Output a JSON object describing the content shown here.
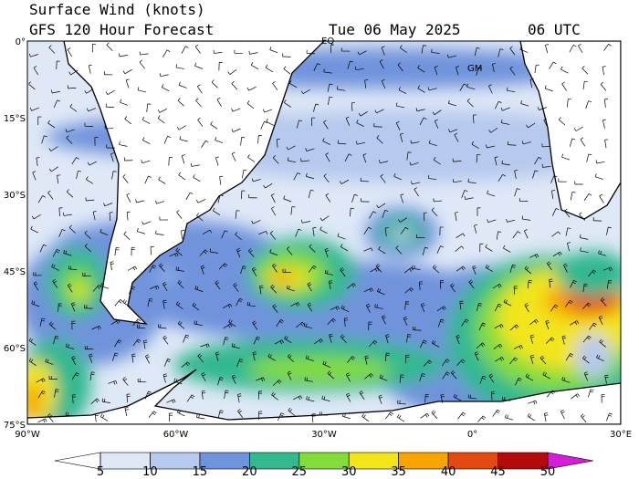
{
  "header": {
    "title": "Surface Wind (knots)",
    "model": "GFS 120 Hour Forecast",
    "date": "Tue 06 May 2025",
    "time": "06 UTC"
  },
  "map": {
    "lat_labels": [
      "0°",
      "15°S",
      "30°S",
      "45°S",
      "60°S",
      "75°S"
    ],
    "lon_labels": [
      "90°W",
      "60°W",
      "30°W",
      "0°",
      "30°E"
    ],
    "place_labels": [
      "EQ",
      "GM"
    ]
  },
  "colorbar": {
    "ticks": [
      5,
      10,
      15,
      20,
      25,
      30,
      35,
      40,
      45,
      50
    ],
    "colors": [
      "#ffffff",
      "#dfe8f7",
      "#b6c9ee",
      "#6f93dc",
      "#33b890",
      "#84dc3c",
      "#f2e51a",
      "#f7a400",
      "#e24a10",
      "#b40a0a",
      "#d31fd8"
    ]
  }
}
